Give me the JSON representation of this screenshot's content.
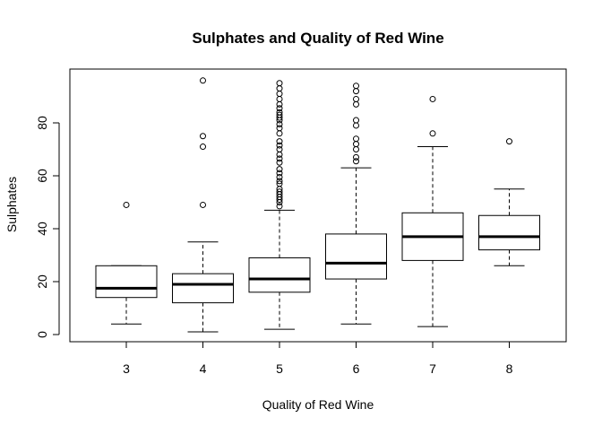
{
  "chart_data": {
    "type": "boxplot",
    "title": "Sulphates and Quality of Red Wine",
    "xlabel": "Quality of Red Wine",
    "ylabel": "Sulphates",
    "categories": [
      "3",
      "4",
      "5",
      "6",
      "7",
      "8"
    ],
    "ylim": [
      0,
      97
    ],
    "yticks": [
      0,
      20,
      40,
      60,
      80
    ],
    "boxes": [
      {
        "category": "3",
        "whisker_low": 4,
        "q1": 14,
        "median": 17.5,
        "q3": 26,
        "whisker_high": 26,
        "outliers": [
          49
        ]
      },
      {
        "category": "4",
        "whisker_low": 1,
        "q1": 12,
        "median": 19,
        "q3": 23,
        "whisker_high": 35,
        "outliers": [
          49,
          71,
          75,
          96
        ]
      },
      {
        "category": "5",
        "whisker_low": 2,
        "q1": 16,
        "median": 21,
        "q3": 29,
        "whisker_high": 47,
        "outliers": [
          48.5,
          50,
          51,
          52,
          53,
          54,
          55,
          57,
          58,
          59.5,
          61,
          62.5,
          65,
          66.5,
          68,
          70,
          71.5,
          73,
          76,
          78,
          79.5,
          81,
          82,
          83,
          84,
          85.5,
          87,
          89,
          91,
          93,
          95
        ]
      },
      {
        "category": "6",
        "whisker_low": 4,
        "q1": 21,
        "median": 27,
        "q3": 38,
        "whisker_high": 63,
        "outliers": [
          65.5,
          67,
          70,
          72,
          74,
          79,
          81,
          87,
          89,
          92,
          94
        ]
      },
      {
        "category": "7",
        "whisker_low": 3,
        "q1": 28,
        "median": 37,
        "q3": 46,
        "whisker_high": 71,
        "outliers": [
          76,
          89
        ]
      },
      {
        "category": "8",
        "whisker_low": 26,
        "q1": 32,
        "median": 37,
        "q3": 45,
        "whisker_high": 55,
        "outliers": [
          73
        ]
      }
    ],
    "grid": false,
    "legend": "none"
  }
}
